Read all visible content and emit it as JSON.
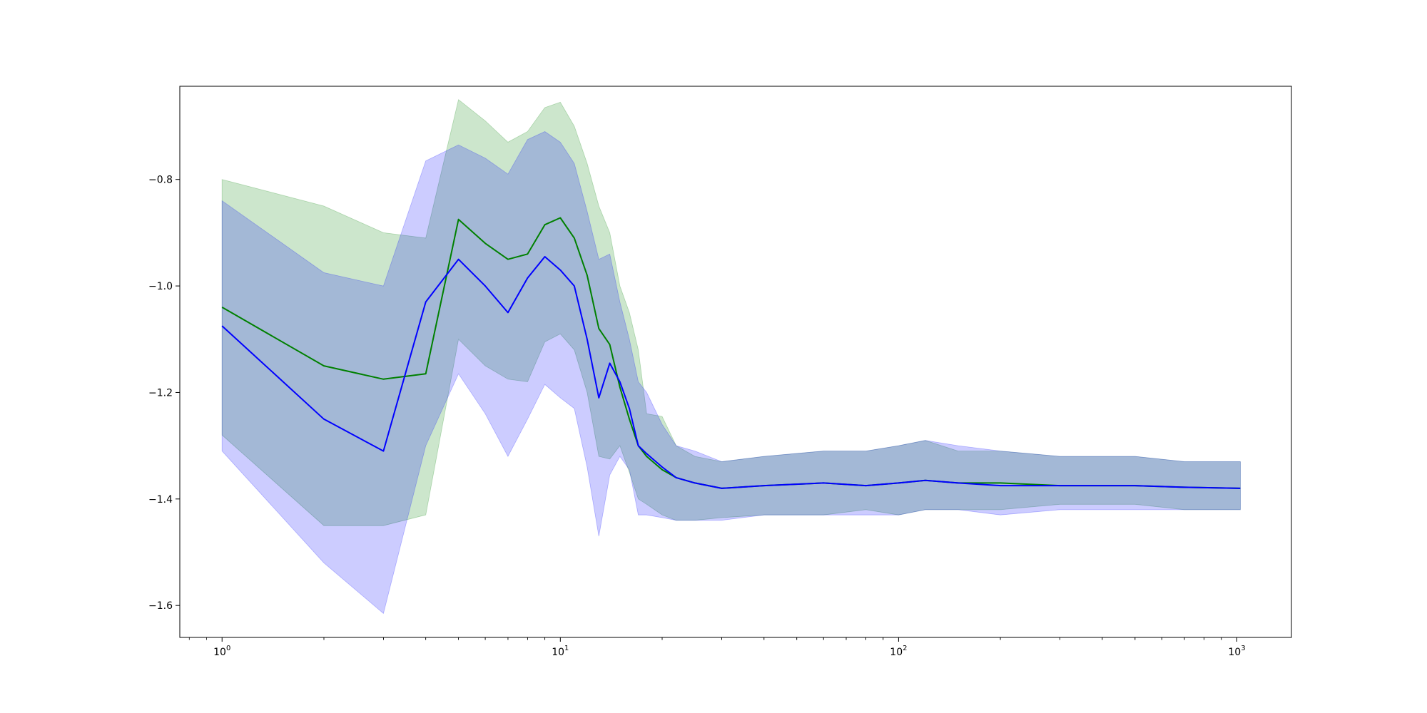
{
  "colors": {
    "green_line": "#008000",
    "green_fill": "#008000",
    "blue_line": "#0000ff",
    "blue_fill": "#0000ff",
    "axes": "#000000",
    "background": "#ffffff"
  },
  "chart_data": {
    "type": "line",
    "title": "",
    "xlabel": "",
    "ylabel": "",
    "xscale": "log",
    "xlim": [
      0.75,
      1450
    ],
    "ylim": [
      -1.66,
      -0.625
    ],
    "grid": false,
    "legend": null,
    "x_ticks": [
      {
        "value": 1,
        "base": "10",
        "exp": "0"
      },
      {
        "value": 10,
        "base": "10",
        "exp": "1"
      },
      {
        "value": 100,
        "base": "10",
        "exp": "2"
      },
      {
        "value": 1000,
        "base": "10",
        "exp": "3"
      }
    ],
    "y_ticks": [
      {
        "value": -0.8,
        "label": "−0.8"
      },
      {
        "value": -1.0,
        "label": "−1.0"
      },
      {
        "value": -1.2,
        "label": "−1.2"
      },
      {
        "value": -1.4,
        "label": "−1.4"
      },
      {
        "value": -1.6,
        "label": "−1.6"
      }
    ],
    "series": [
      {
        "color": "green",
        "x": [
          1,
          2,
          3,
          4,
          5,
          6,
          7,
          8,
          9,
          10,
          11,
          12,
          13,
          14,
          15,
          16,
          17,
          18,
          20,
          22,
          25,
          30,
          40,
          60,
          80,
          100,
          120,
          150,
          200,
          300,
          500,
          700,
          1024
        ],
        "y": [
          -1.04,
          -1.15,
          -1.175,
          -1.165,
          -0.875,
          -0.92,
          -0.95,
          -0.94,
          -0.885,
          -0.872,
          -0.91,
          -0.98,
          -1.08,
          -1.11,
          -1.19,
          -1.25,
          -1.3,
          -1.32,
          -1.345,
          -1.36,
          -1.37,
          -1.38,
          -1.375,
          -1.37,
          -1.375,
          -1.37,
          -1.365,
          -1.37,
          -1.37,
          -1.375,
          -1.375,
          -1.378,
          -1.38
        ],
        "lower": [
          -1.28,
          -1.45,
          -1.45,
          -1.43,
          -1.1,
          -1.15,
          -1.175,
          -1.18,
          -1.105,
          -1.09,
          -1.12,
          -1.2,
          -1.32,
          -1.325,
          -1.3,
          -1.35,
          -1.4,
          -1.41,
          -1.43,
          -1.44,
          -1.44,
          -1.435,
          -1.43,
          -1.43,
          -1.42,
          -1.43,
          -1.42,
          -1.42,
          -1.42,
          -1.41,
          -1.41,
          -1.42,
          -1.42
        ],
        "upper": [
          -0.8,
          -0.85,
          -0.9,
          -0.91,
          -0.65,
          -0.69,
          -0.73,
          -0.71,
          -0.665,
          -0.655,
          -0.7,
          -0.77,
          -0.85,
          -0.9,
          -1.0,
          -1.05,
          -1.12,
          -1.24,
          -1.245,
          -1.3,
          -1.32,
          -1.33,
          -1.32,
          -1.31,
          -1.31,
          -1.3,
          -1.29,
          -1.31,
          -1.31,
          -1.32,
          -1.32,
          -1.33,
          -1.33
        ]
      },
      {
        "color": "blue",
        "x": [
          1,
          2,
          3,
          4,
          5,
          6,
          7,
          8,
          9,
          10,
          11,
          12,
          13,
          14,
          15,
          16,
          17,
          18,
          20,
          22,
          25,
          30,
          40,
          60,
          80,
          100,
          120,
          150,
          200,
          300,
          500,
          700,
          1024
        ],
        "y": [
          -1.075,
          -1.25,
          -1.31,
          -1.03,
          -0.95,
          -1.0,
          -1.05,
          -0.985,
          -0.945,
          -0.97,
          -1.0,
          -1.1,
          -1.21,
          -1.145,
          -1.18,
          -1.23,
          -1.3,
          -1.315,
          -1.34,
          -1.36,
          -1.37,
          -1.38,
          -1.375,
          -1.37,
          -1.375,
          -1.37,
          -1.365,
          -1.37,
          -1.375,
          -1.375,
          -1.375,
          -1.378,
          -1.38
        ],
        "lower": [
          -1.31,
          -1.52,
          -1.615,
          -1.3,
          -1.165,
          -1.24,
          -1.32,
          -1.25,
          -1.185,
          -1.21,
          -1.23,
          -1.34,
          -1.47,
          -1.355,
          -1.32,
          -1.345,
          -1.43,
          -1.43,
          -1.435,
          -1.44,
          -1.44,
          -1.44,
          -1.43,
          -1.43,
          -1.43,
          -1.43,
          -1.42,
          -1.42,
          -1.43,
          -1.42,
          -1.42,
          -1.42,
          -1.42
        ],
        "upper": [
          -0.84,
          -0.975,
          -1.0,
          -0.765,
          -0.735,
          -0.76,
          -0.79,
          -0.725,
          -0.71,
          -0.73,
          -0.77,
          -0.86,
          -0.95,
          -0.94,
          -1.03,
          -1.1,
          -1.18,
          -1.2,
          -1.26,
          -1.3,
          -1.31,
          -1.33,
          -1.32,
          -1.31,
          -1.31,
          -1.3,
          -1.29,
          -1.3,
          -1.31,
          -1.32,
          -1.32,
          -1.33,
          -1.33
        ]
      }
    ]
  }
}
